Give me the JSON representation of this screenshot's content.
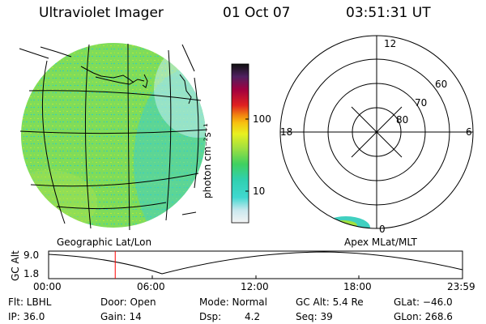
{
  "header": {
    "title": "Ultraviolet Imager",
    "date": "01 Oct 07",
    "time": "03:51:31 UT"
  },
  "colorbar": {
    "unit": "photon cm⁻²s⁻¹",
    "ticks": [
      "100",
      "10"
    ]
  },
  "polar": {
    "mlt_labels": [
      "12",
      "18",
      "6",
      "0"
    ],
    "lat_labels": [
      "60",
      "70",
      "80"
    ]
  },
  "projection_labels": {
    "left": "Geographic Lat/Lon",
    "right": "Apex MLat/MLT"
  },
  "altitude_plot": {
    "ylabel": "GC Alt",
    "yticks": [
      "9.0",
      "1.8"
    ],
    "xticks": [
      "00:00",
      "06:00",
      "12:00",
      "18:00",
      "23:59"
    ],
    "current_time_hours": 3.86,
    "marker_color": "#ff0000"
  },
  "footer": {
    "flt": "Flt: LBHL",
    "door": "Door: Open",
    "mode": "Mode: Normal",
    "gc_alt": "GC Alt: 5.4 Re",
    "glat": "GLat: −46.0",
    "ip": "IP: 36.0",
    "gain": "Gain: 14",
    "dsp_label": "Dsp:",
    "dsp_value": "4.2",
    "seq": "Seq: 39",
    "glon": "GLon: 268.6"
  }
}
